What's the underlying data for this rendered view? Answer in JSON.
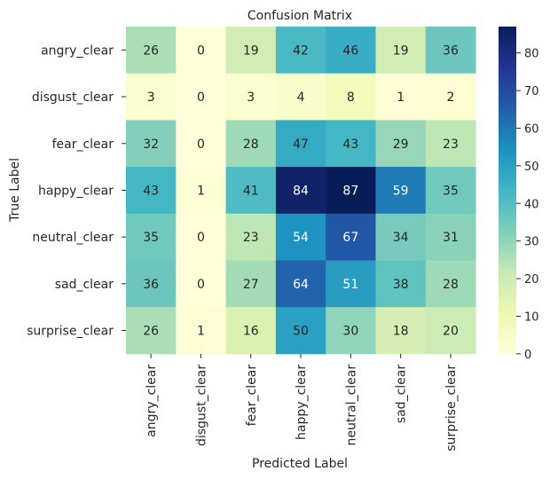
{
  "chart_data": {
    "type": "heatmap",
    "title": "Confusion Matrix",
    "xlabel": "Predicted Label",
    "ylabel": "True Label",
    "x_categories": [
      "angry_clear",
      "disgust_clear",
      "fear_clear",
      "happy_clear",
      "neutral_clear",
      "sad_clear",
      "surprise_clear"
    ],
    "y_categories": [
      "angry_clear",
      "disgust_clear",
      "fear_clear",
      "happy_clear",
      "neutral_clear",
      "sad_clear",
      "surprise_clear"
    ],
    "values": [
      [
        26,
        0,
        19,
        42,
        46,
        19,
        36
      ],
      [
        3,
        0,
        3,
        4,
        8,
        1,
        2
      ],
      [
        32,
        0,
        28,
        47,
        43,
        29,
        23
      ],
      [
        43,
        1,
        41,
        84,
        87,
        59,
        35
      ],
      [
        35,
        0,
        23,
        54,
        67,
        34,
        31
      ],
      [
        36,
        0,
        27,
        64,
        51,
        38,
        28
      ],
      [
        26,
        1,
        16,
        50,
        30,
        18,
        20
      ]
    ],
    "colorbar": {
      "colormap": "YlGnBu",
      "range": [
        0,
        87
      ],
      "ticks": [
        0,
        10,
        20,
        30,
        40,
        50,
        60,
        70,
        80
      ]
    }
  }
}
